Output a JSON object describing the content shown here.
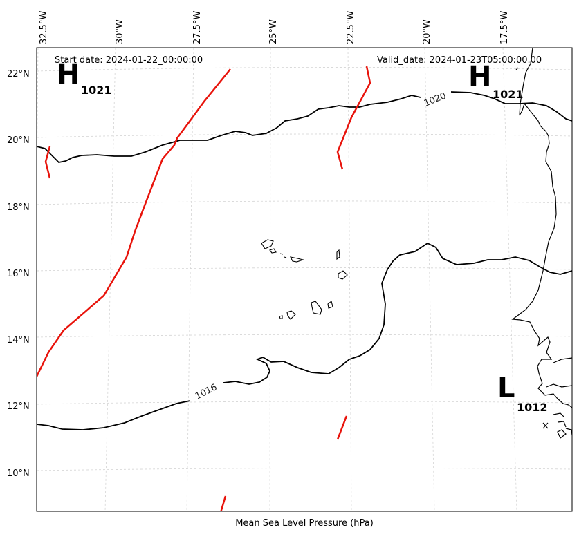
{
  "map": {
    "start_date": "Start date: 2024-01-22_00:00:00",
    "valid_date": "Valid_date: 2024-01-23T05:00:00.00",
    "xlabel": "Mean Sea Level Pressure (hPa)",
    "lon_ticks": [
      "32.5°W",
      "30°W",
      "27.5°W",
      "25°W",
      "22.5°W",
      "20°W",
      "17.5°W"
    ],
    "lat_ticks": [
      "22°N",
      "20°N",
      "18°N",
      "16°N",
      "14°N",
      "12°N",
      "10°N"
    ],
    "contour_labels": [
      "1020",
      "1016"
    ],
    "pressure_centers": [
      {
        "letter": "H",
        "value": "1021"
      },
      {
        "letter": "H",
        "value": "1021"
      },
      {
        "letter": "L",
        "value": "1012"
      }
    ],
    "colors": {
      "isobar": "#000000",
      "trough": "#e8130b",
      "gridline": "#cccccc",
      "coastline": "#000000"
    }
  }
}
